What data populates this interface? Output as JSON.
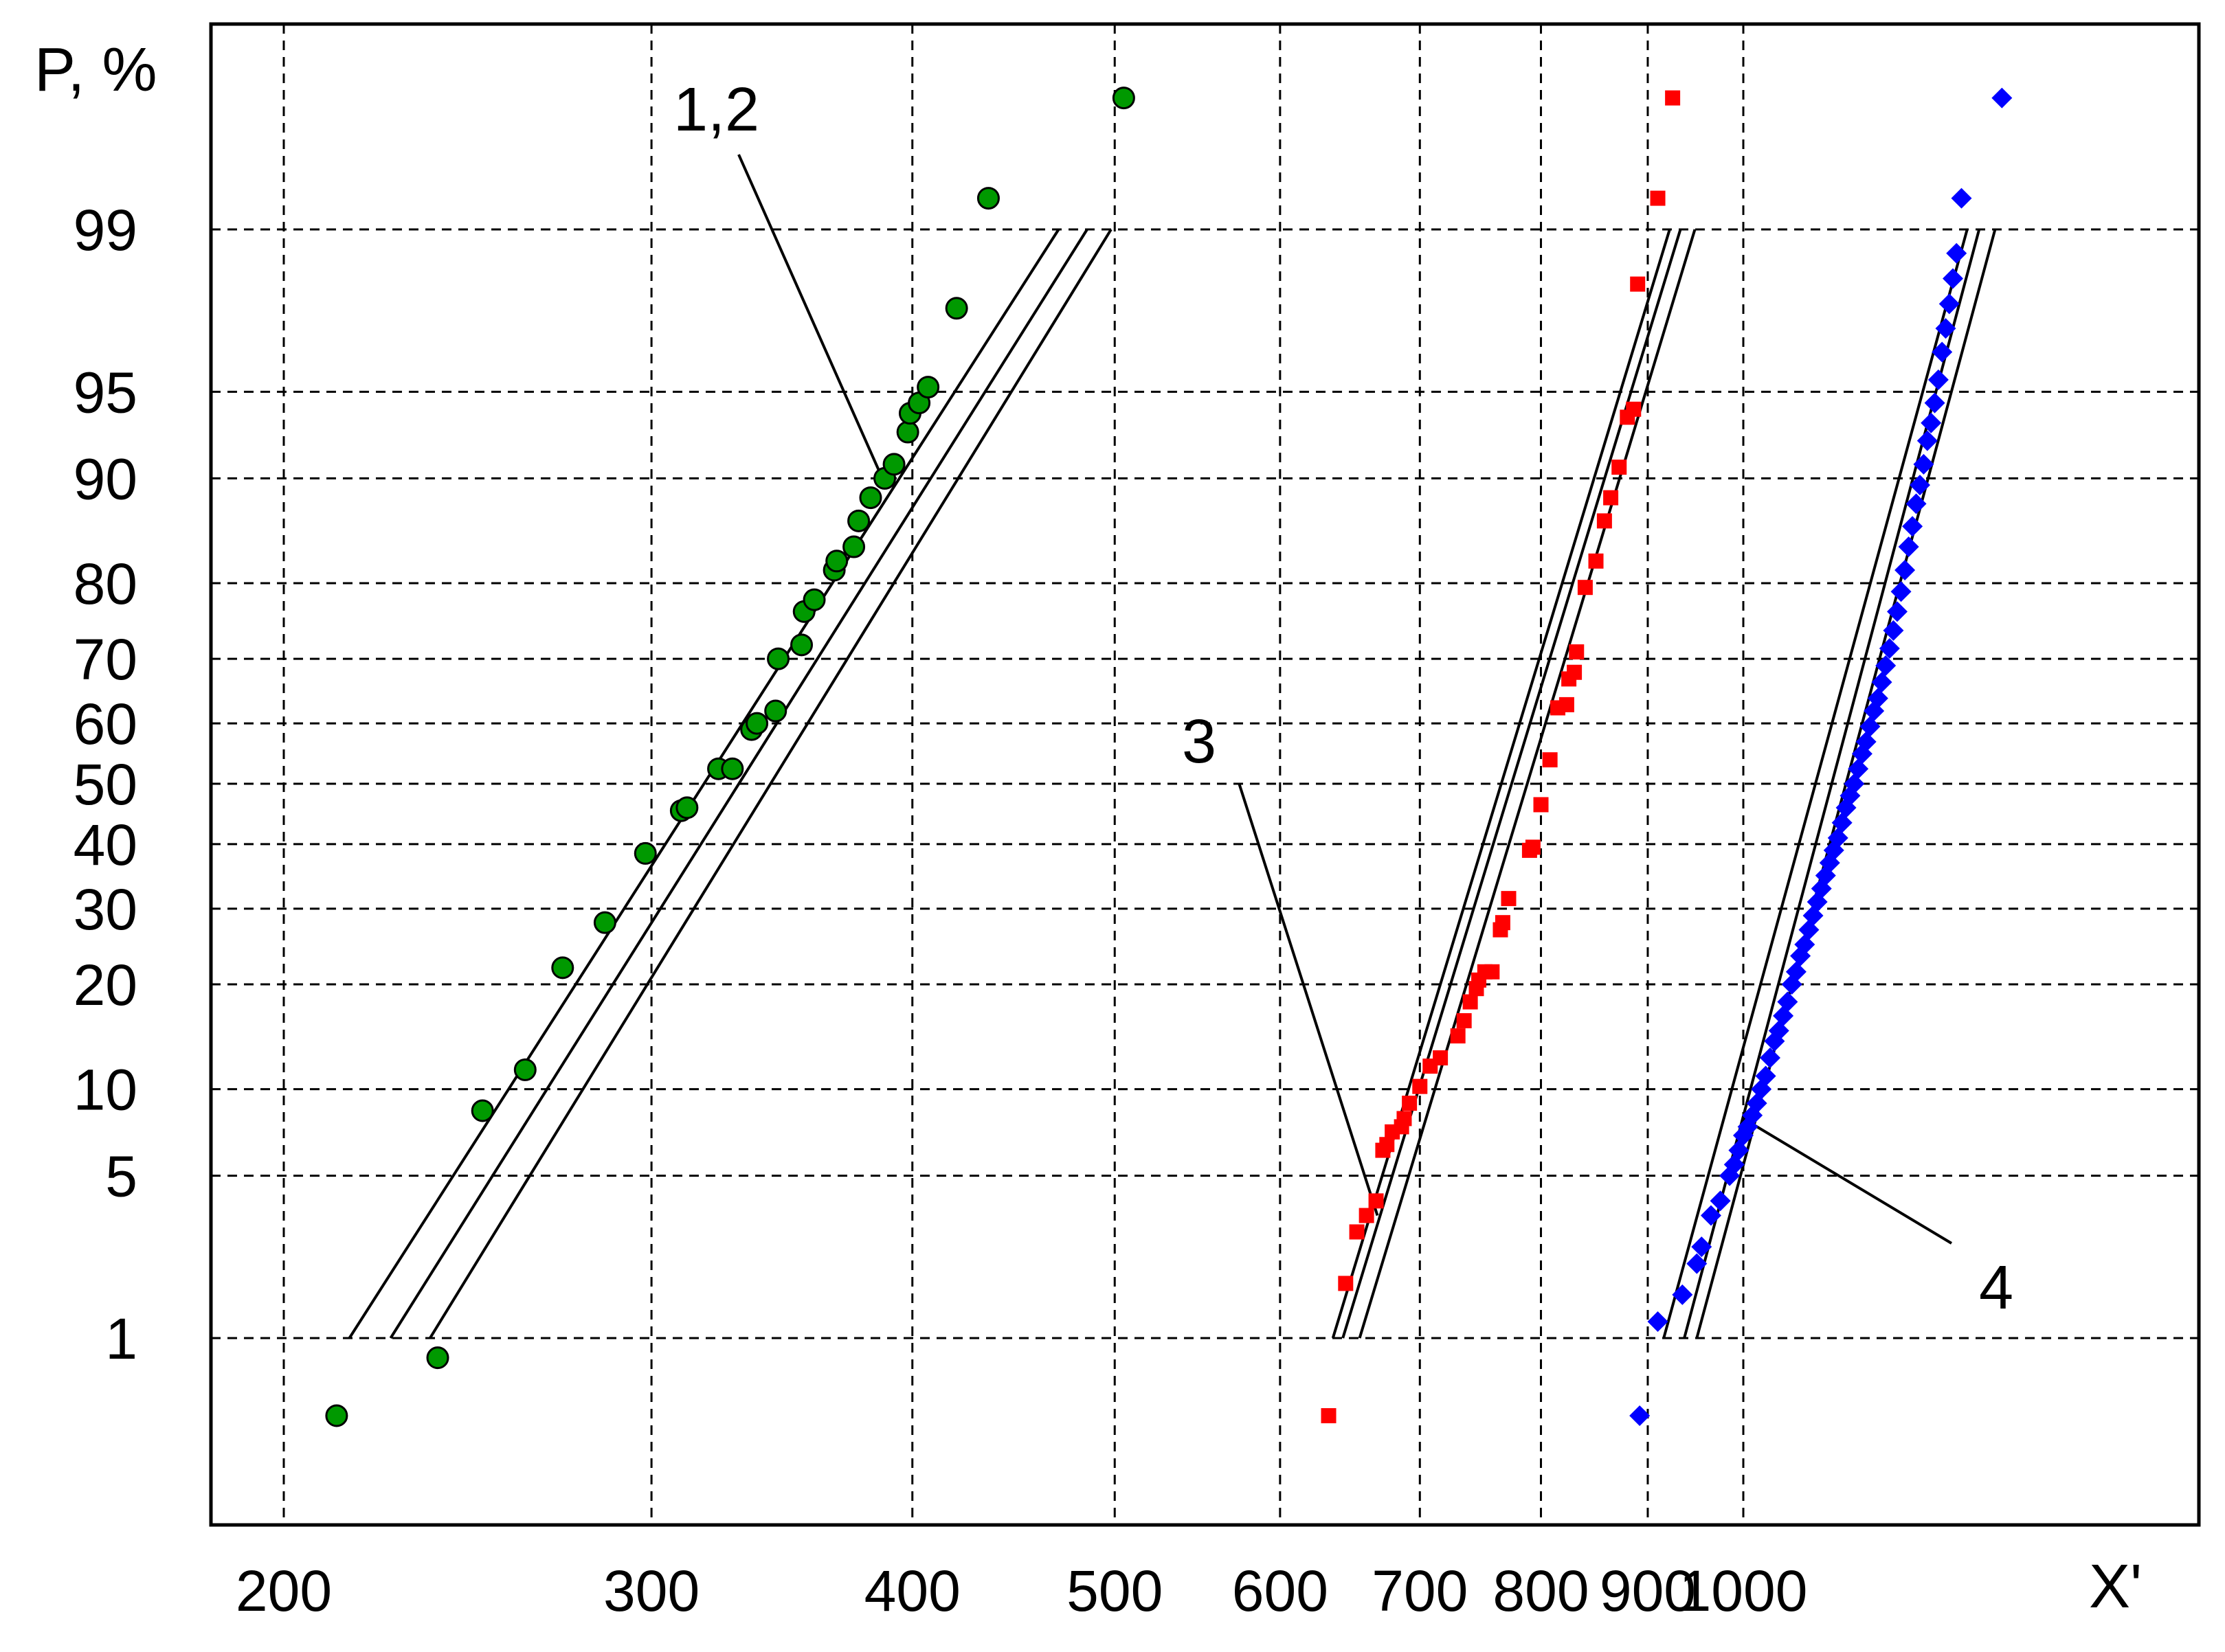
{
  "chart_data": {
    "type": "scatter",
    "title": "",
    "xlabel": "X'",
    "ylabel": "P, %",
    "x_scale": "log",
    "y_scale": "normal-probability",
    "xlim": [
      190,
      1400
    ],
    "ylim": [
      0.1,
      99.9
    ],
    "grid": true,
    "x_ticks": [
      {
        "value": 200,
        "label": "200"
      },
      {
        "value": 300,
        "label": "300"
      },
      {
        "value": 400,
        "label": "400"
      },
      {
        "value": 500,
        "label": "500"
      },
      {
        "value": 600,
        "label": "600"
      },
      {
        "value": 700,
        "label": "700"
      },
      {
        "value": 800,
        "label": "800"
      },
      {
        "value": 900,
        "label": "900"
      },
      {
        "value": 1000,
        "label": "1000"
      }
    ],
    "y_ticks": [
      {
        "value": 1,
        "label": "1"
      },
      {
        "value": 5,
        "label": "5"
      },
      {
        "value": 10,
        "label": "10"
      },
      {
        "value": 20,
        "label": "20"
      },
      {
        "value": 30,
        "label": "30"
      },
      {
        "value": 40,
        "label": "40"
      },
      {
        "value": 50,
        "label": "50"
      },
      {
        "value": 60,
        "label": "60"
      },
      {
        "value": 70,
        "label": "70"
      },
      {
        "value": 80,
        "label": "80"
      },
      {
        "value": 90,
        "label": "90"
      },
      {
        "value": 95,
        "label": "95"
      },
      {
        "value": 99,
        "label": "99"
      }
    ],
    "series": [
      {
        "color": "#009900",
        "marker": "circle",
        "points": [
          [
            212,
            0.4
          ],
          [
            237,
            0.8
          ],
          [
            249,
            8.5
          ],
          [
            261,
            11.5
          ],
          [
            272,
            22
          ],
          [
            285,
            28
          ],
          [
            298,
            38.5
          ],
          [
            310,
            45.5
          ],
          [
            312,
            46
          ],
          [
            323,
            52.5
          ],
          [
            328,
            52.5
          ],
          [
            335,
            59
          ],
          [
            337,
            60
          ],
          [
            344,
            62
          ],
          [
            345,
            70
          ],
          [
            354,
            72
          ],
          [
            355,
            76.5
          ],
          [
            359,
            78
          ],
          [
            367,
            81.5
          ],
          [
            368,
            82.5
          ],
          [
            375,
            84
          ],
          [
            377,
            86.5
          ],
          [
            382,
            88.5
          ],
          [
            388,
            90
          ],
          [
            392,
            91
          ],
          [
            398,
            93
          ],
          [
            399,
            94
          ],
          [
            403,
            94.5
          ],
          [
            407,
            95.2
          ],
          [
            420,
            97.7
          ],
          [
            435,
            99.3
          ],
          [
            505,
            99.8
          ]
        ]
      },
      {
        "color": "#ff0000",
        "marker": "square",
        "points": [
          [
            633,
            0.4
          ],
          [
            645,
            1.8
          ],
          [
            653,
            3
          ],
          [
            660,
            3.5
          ],
          [
            667,
            4
          ],
          [
            672,
            6.2
          ],
          [
            675,
            6.5
          ],
          [
            679,
            7.2
          ],
          [
            686,
            7.5
          ],
          [
            688,
            8
          ],
          [
            692,
            9
          ],
          [
            700,
            10.2
          ],
          [
            708,
            11.8
          ],
          [
            716,
            12.5
          ],
          [
            730,
            14.5
          ],
          [
            735,
            16
          ],
          [
            740,
            18
          ],
          [
            745,
            19.5
          ],
          [
            747,
            20.5
          ],
          [
            752,
            21.5
          ],
          [
            758,
            21.5
          ],
          [
            765,
            27
          ],
          [
            767,
            28
          ],
          [
            772,
            31.5
          ],
          [
            790,
            39
          ],
          [
            793,
            39.5
          ],
          [
            800,
            46.5
          ],
          [
            808,
            54
          ],
          [
            815,
            62.5
          ],
          [
            823,
            63
          ],
          [
            825,
            67
          ],
          [
            830,
            68
          ],
          [
            832,
            71
          ],
          [
            840,
            79.5
          ],
          [
            850,
            82.5
          ],
          [
            858,
            86.5
          ],
          [
            864,
            88.5
          ],
          [
            872,
            90.8
          ],
          [
            880,
            93.8
          ],
          [
            886,
            94.2
          ],
          [
            890,
            98.2
          ],
          [
            910,
            99.3
          ],
          [
            925,
            99.8
          ]
        ]
      },
      {
        "color": "#0000ff",
        "marker": "diamond",
        "points": [
          [
            892,
            0.4
          ],
          [
            910,
            1.2
          ],
          [
            935,
            1.6
          ],
          [
            950,
            2.2
          ],
          [
            955,
            2.6
          ],
          [
            965,
            3.5
          ],
          [
            975,
            4
          ],
          [
            985,
            5
          ],
          [
            990,
            5.5
          ],
          [
            995,
            6.2
          ],
          [
            1000,
            7
          ],
          [
            1005,
            7.5
          ],
          [
            1010,
            8.2
          ],
          [
            1015,
            9
          ],
          [
            1020,
            10
          ],
          [
            1025,
            11
          ],
          [
            1030,
            12.5
          ],
          [
            1035,
            14
          ],
          [
            1040,
            15
          ],
          [
            1045,
            16.5
          ],
          [
            1050,
            18
          ],
          [
            1055,
            20
          ],
          [
            1060,
            21.5
          ],
          [
            1065,
            23.5
          ],
          [
            1070,
            25
          ],
          [
            1075,
            27
          ],
          [
            1080,
            29
          ],
          [
            1085,
            31
          ],
          [
            1090,
            33
          ],
          [
            1095,
            35
          ],
          [
            1100,
            37
          ],
          [
            1105,
            39
          ],
          [
            1110,
            41
          ],
          [
            1115,
            43.5
          ],
          [
            1120,
            46
          ],
          [
            1125,
            48
          ],
          [
            1130,
            50
          ],
          [
            1135,
            52.5
          ],
          [
            1140,
            55
          ],
          [
            1145,
            57
          ],
          [
            1150,
            59.5
          ],
          [
            1155,
            62
          ],
          [
            1160,
            64
          ],
          [
            1165,
            66.5
          ],
          [
            1170,
            69
          ],
          [
            1175,
            71.5
          ],
          [
            1180,
            74
          ],
          [
            1185,
            76.5
          ],
          [
            1190,
            79
          ],
          [
            1195,
            81.5
          ],
          [
            1200,
            84
          ],
          [
            1205,
            86
          ],
          [
            1210,
            88
          ],
          [
            1215,
            89.5
          ],
          [
            1220,
            91
          ],
          [
            1225,
            92.5
          ],
          [
            1230,
            93.5
          ],
          [
            1235,
            94.5
          ],
          [
            1240,
            95.5
          ],
          [
            1245,
            96.5
          ],
          [
            1250,
            97.2
          ],
          [
            1255,
            97.8
          ],
          [
            1260,
            98.3
          ],
          [
            1265,
            98.7
          ],
          [
            1272,
            99.3
          ],
          [
            1330,
            99.8
          ]
        ]
      }
    ],
    "fit_lines": [
      {
        "x1": 215,
        "x2": 470
      },
      {
        "x1": 225,
        "x2": 485
      },
      {
        "x1": 235,
        "x2": 498
      },
      {
        "x1": 636,
        "x2": 922
      },
      {
        "x1": 643,
        "x2": 933
      },
      {
        "x1": 655,
        "x2": 948
      },
      {
        "x1": 916,
        "x2": 1280
      },
      {
        "x1": 937,
        "x2": 1297
      },
      {
        "x1": 950,
        "x2": 1320
      }
    ],
    "annotations": [
      {
        "text": "1,2",
        "tip_x": 387,
        "tip_p": 90
      },
      {
        "text": "3",
        "tip_x": 668,
        "tip_p": 3.5
      },
      {
        "text": "4",
        "tip_x": 1000,
        "tip_p": 8
      }
    ]
  }
}
